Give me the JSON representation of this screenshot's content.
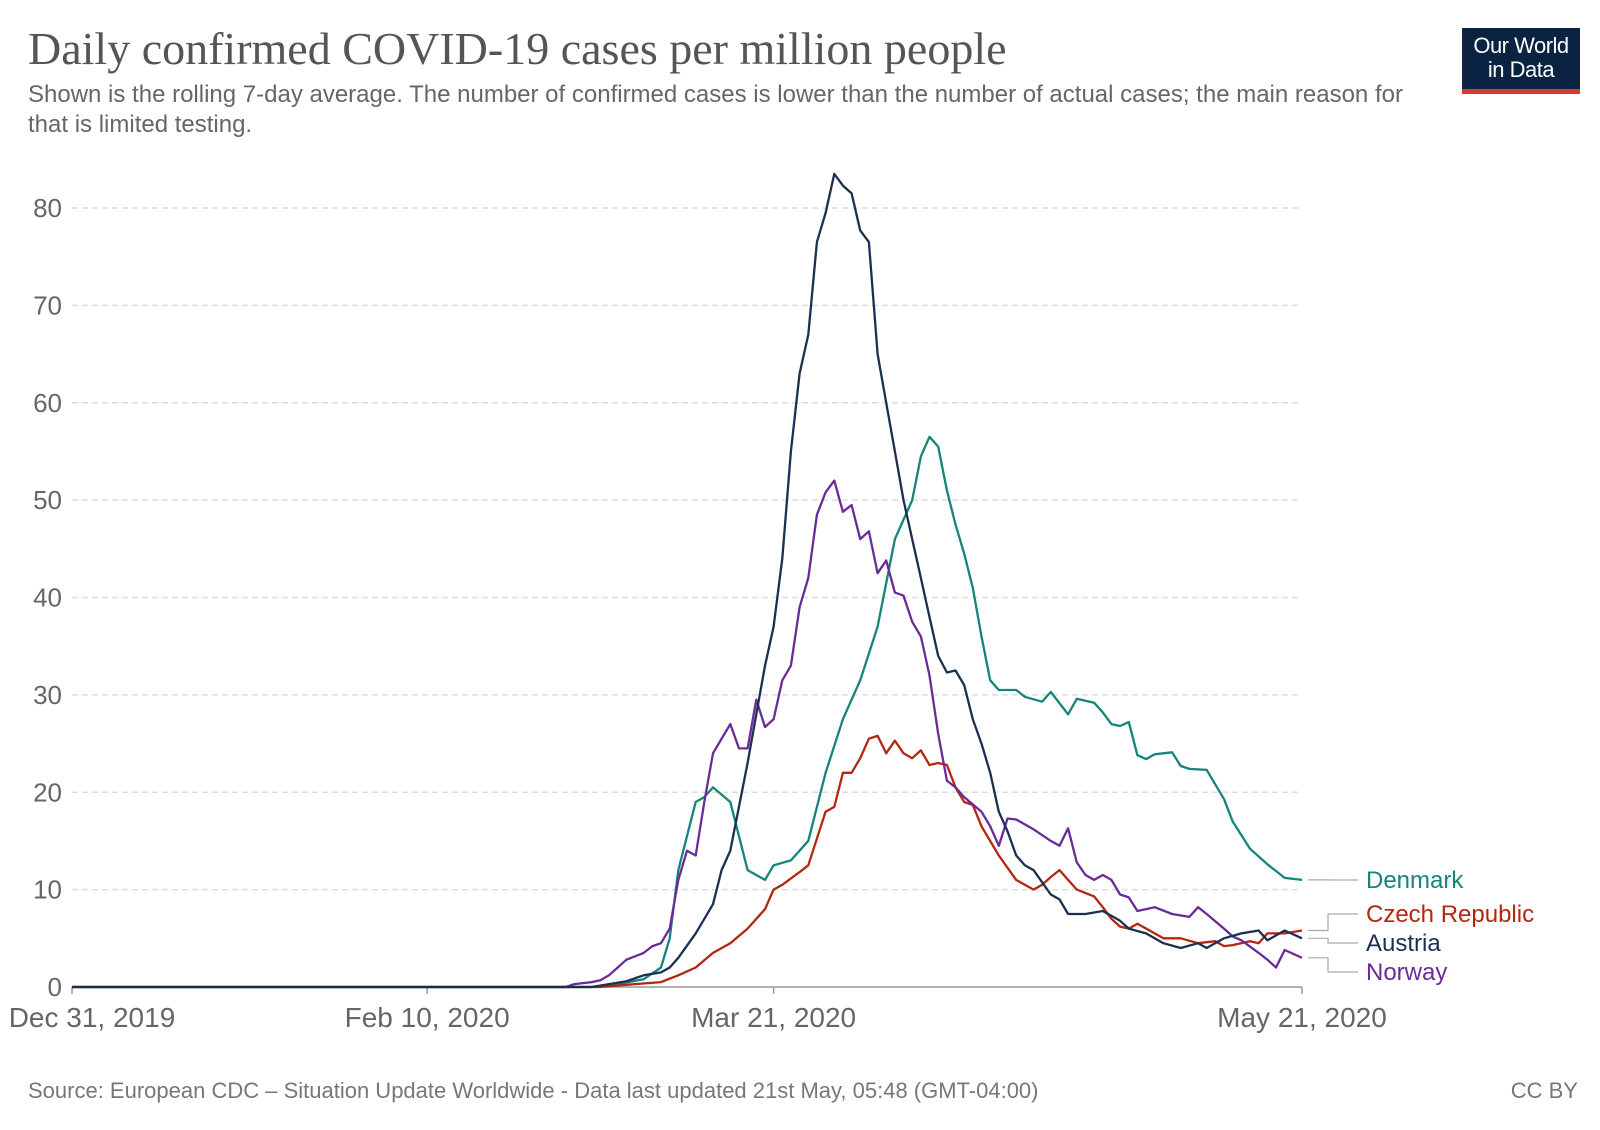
{
  "header": {
    "title": "Daily confirmed COVID-19 cases per million people",
    "subtitle": "Shown is the rolling 7-day average. The number of confirmed cases is lower than the number of actual cases; the main reason for that is limited testing.",
    "logo_line1": "Our World",
    "logo_line2": "in Data"
  },
  "footer": {
    "source": "Source: European CDC – Situation Update Worldwide - Data last updated 21st May, 05:48 (GMT-04:00)",
    "license": "CC BY"
  },
  "colors": {
    "denmark": "#15847a",
    "czech": "#b4270f",
    "austria": "#1b3051",
    "norway": "#6a2b98",
    "logo_bg": "#0a2342",
    "logo_bar": "#d73a31"
  },
  "chart_data": {
    "type": "line",
    "title": "Daily confirmed COVID-19 cases per million people",
    "xlabel": "",
    "ylabel": "",
    "x_start": "2019-12-31",
    "x_end": "2020-05-21",
    "x_ticks": [
      {
        "date": "2019-12-31",
        "label": "Dec 31, 2019"
      },
      {
        "date": "2020-02-10",
        "label": "Feb 10, 2020"
      },
      {
        "date": "2020-03-21",
        "label": "Mar 21, 2020"
      },
      {
        "date": "2020-05-21",
        "label": "May 21, 2020"
      }
    ],
    "ylim": [
      0,
      80
    ],
    "y_ticks": [
      0,
      10,
      20,
      30,
      40,
      50,
      60,
      70,
      80
    ],
    "grid": true,
    "legend": "right, labels at line ends",
    "series": [
      {
        "name": "Denmark",
        "color": "#15847a",
        "points": [
          [
            "2019-12-31",
            0
          ],
          [
            "2020-02-29",
            0
          ],
          [
            "2020-03-03",
            0.3
          ],
          [
            "2020-03-06",
            0.8
          ],
          [
            "2020-03-08",
            2
          ],
          [
            "2020-03-09",
            5
          ],
          [
            "2020-03-10",
            12
          ],
          [
            "2020-03-12",
            19
          ],
          [
            "2020-03-13",
            19.5
          ],
          [
            "2020-03-14",
            20.5
          ],
          [
            "2020-03-16",
            19
          ],
          [
            "2020-03-18",
            12
          ],
          [
            "2020-03-20",
            11
          ],
          [
            "2020-03-21",
            12.5
          ],
          [
            "2020-03-23",
            13
          ],
          [
            "2020-03-25",
            15
          ],
          [
            "2020-03-27",
            22
          ],
          [
            "2020-03-29",
            27.5
          ],
          [
            "2020-03-31",
            31.5
          ],
          [
            "2020-04-02",
            37
          ],
          [
            "2020-04-04",
            46
          ],
          [
            "2020-04-06",
            50
          ],
          [
            "2020-04-07",
            54.5
          ],
          [
            "2020-04-08",
            56.5
          ],
          [
            "2020-04-09",
            55.5
          ],
          [
            "2020-04-10",
            51
          ],
          [
            "2020-04-11",
            47.5
          ],
          [
            "2020-04-12",
            44.5
          ],
          [
            "2020-04-13",
            41
          ],
          [
            "2020-04-14",
            36
          ],
          [
            "2020-04-15",
            31.5
          ],
          [
            "2020-04-16",
            30.5
          ],
          [
            "2020-04-18",
            30.5
          ],
          [
            "2020-04-19",
            29.8
          ],
          [
            "2020-04-21",
            29.3
          ],
          [
            "2020-04-22",
            30.3
          ],
          [
            "2020-04-24",
            28
          ],
          [
            "2020-04-25",
            29.6
          ],
          [
            "2020-04-27",
            29.2
          ],
          [
            "2020-04-28",
            28.2
          ],
          [
            "2020-04-29",
            27
          ],
          [
            "2020-04-30",
            26.8
          ],
          [
            "2020-05-01",
            27.2
          ],
          [
            "2020-05-02",
            23.8
          ],
          [
            "2020-05-03",
            23.4
          ],
          [
            "2020-05-04",
            23.9
          ],
          [
            "2020-05-06",
            24.1
          ],
          [
            "2020-05-07",
            22.7
          ],
          [
            "2020-05-08",
            22.4
          ],
          [
            "2020-05-10",
            22.3
          ],
          [
            "2020-05-12",
            19.3
          ],
          [
            "2020-05-13",
            17
          ],
          [
            "2020-05-15",
            14.2
          ],
          [
            "2020-05-17",
            12.6
          ],
          [
            "2020-05-19",
            11.2
          ],
          [
            "2020-05-21",
            11
          ]
        ]
      },
      {
        "name": "Czech Republic",
        "color": "#b4270f",
        "points": [
          [
            "2019-12-31",
            0
          ],
          [
            "2020-03-01",
            0
          ],
          [
            "2020-03-05",
            0.3
          ],
          [
            "2020-03-08",
            0.5
          ],
          [
            "2020-03-10",
            1.2
          ],
          [
            "2020-03-12",
            2
          ],
          [
            "2020-03-14",
            3.5
          ],
          [
            "2020-03-16",
            4.5
          ],
          [
            "2020-03-18",
            6
          ],
          [
            "2020-03-20",
            8
          ],
          [
            "2020-03-21",
            10
          ],
          [
            "2020-03-22",
            10.5
          ],
          [
            "2020-03-24",
            11.8
          ],
          [
            "2020-03-25",
            12.5
          ],
          [
            "2020-03-27",
            18
          ],
          [
            "2020-03-28",
            18.5
          ],
          [
            "2020-03-29",
            22
          ],
          [
            "2020-03-30",
            22
          ],
          [
            "2020-03-31",
            23.5
          ],
          [
            "2020-04-01",
            25.5
          ],
          [
            "2020-04-02",
            25.8
          ],
          [
            "2020-04-03",
            24
          ],
          [
            "2020-04-04",
            25.3
          ],
          [
            "2020-04-05",
            24
          ],
          [
            "2020-04-06",
            23.5
          ],
          [
            "2020-04-07",
            24.3
          ],
          [
            "2020-04-08",
            22.8
          ],
          [
            "2020-04-09",
            23
          ],
          [
            "2020-04-10",
            22.8
          ],
          [
            "2020-04-11",
            20.5
          ],
          [
            "2020-04-12",
            19
          ],
          [
            "2020-04-13",
            18.7
          ],
          [
            "2020-04-14",
            16.5
          ],
          [
            "2020-04-16",
            13.5
          ],
          [
            "2020-04-18",
            11
          ],
          [
            "2020-04-20",
            10
          ],
          [
            "2020-04-21",
            10.5
          ],
          [
            "2020-04-22",
            11.3
          ],
          [
            "2020-04-23",
            12
          ],
          [
            "2020-04-24",
            11
          ],
          [
            "2020-04-25",
            10
          ],
          [
            "2020-04-27",
            9.3
          ],
          [
            "2020-04-28",
            8.2
          ],
          [
            "2020-04-29",
            7
          ],
          [
            "2020-04-30",
            6.2
          ],
          [
            "2020-05-01",
            6
          ],
          [
            "2020-05-02",
            6.5
          ],
          [
            "2020-05-04",
            5.5
          ],
          [
            "2020-05-05",
            5
          ],
          [
            "2020-05-07",
            5
          ],
          [
            "2020-05-09",
            4.5
          ],
          [
            "2020-05-11",
            4.7
          ],
          [
            "2020-05-12",
            4.2
          ],
          [
            "2020-05-13",
            4.3
          ],
          [
            "2020-05-15",
            4.7
          ],
          [
            "2020-05-16",
            4.5
          ],
          [
            "2020-05-17",
            5.5
          ],
          [
            "2020-05-19",
            5.5
          ],
          [
            "2020-05-21",
            5.8
          ]
        ]
      },
      {
        "name": "Austria",
        "color": "#1b3051",
        "points": [
          [
            "2019-12-31",
            0
          ],
          [
            "2020-02-29",
            0
          ],
          [
            "2020-03-02",
            0.3
          ],
          [
            "2020-03-04",
            0.6
          ],
          [
            "2020-03-06",
            1.2
          ],
          [
            "2020-03-08",
            1.5
          ],
          [
            "2020-03-09",
            2
          ],
          [
            "2020-03-10",
            3
          ],
          [
            "2020-03-12",
            5.5
          ],
          [
            "2020-03-14",
            8.5
          ],
          [
            "2020-03-15",
            12
          ],
          [
            "2020-03-16",
            14
          ],
          [
            "2020-03-18",
            23
          ],
          [
            "2020-03-19",
            28
          ],
          [
            "2020-03-20",
            33
          ],
          [
            "2020-03-21",
            37
          ],
          [
            "2020-03-22",
            44
          ],
          [
            "2020-03-23",
            55
          ],
          [
            "2020-03-24",
            63
          ],
          [
            "2020-03-25",
            67
          ],
          [
            "2020-03-26",
            76.5
          ],
          [
            "2020-03-27",
            79.5
          ],
          [
            "2020-03-28",
            83.5
          ],
          [
            "2020-03-29",
            82.3
          ],
          [
            "2020-03-30",
            81.5
          ],
          [
            "2020-03-31",
            77.7
          ],
          [
            "2020-04-01",
            76.5
          ],
          [
            "2020-04-02",
            65
          ],
          [
            "2020-04-03",
            60
          ],
          [
            "2020-04-04",
            55
          ],
          [
            "2020-04-05",
            50
          ],
          [
            "2020-04-06",
            46
          ],
          [
            "2020-04-07",
            42
          ],
          [
            "2020-04-08",
            38
          ],
          [
            "2020-04-09",
            34
          ],
          [
            "2020-04-10",
            32.3
          ],
          [
            "2020-04-11",
            32.5
          ],
          [
            "2020-04-12",
            31
          ],
          [
            "2020-04-13",
            27.5
          ],
          [
            "2020-04-14",
            25
          ],
          [
            "2020-04-15",
            22
          ],
          [
            "2020-04-16",
            18
          ],
          [
            "2020-04-17",
            16
          ],
          [
            "2020-04-18",
            13.5
          ],
          [
            "2020-04-19",
            12.5
          ],
          [
            "2020-04-20",
            12
          ],
          [
            "2020-04-22",
            9.5
          ],
          [
            "2020-04-23",
            9
          ],
          [
            "2020-04-24",
            7.5
          ],
          [
            "2020-04-26",
            7.5
          ],
          [
            "2020-04-28",
            7.8
          ],
          [
            "2020-04-30",
            6.8
          ],
          [
            "2020-05-01",
            6
          ],
          [
            "2020-05-03",
            5.5
          ],
          [
            "2020-05-05",
            4.5
          ],
          [
            "2020-05-07",
            4
          ],
          [
            "2020-05-09",
            4.5
          ],
          [
            "2020-05-10",
            4
          ],
          [
            "2020-05-12",
            5
          ],
          [
            "2020-05-14",
            5.5
          ],
          [
            "2020-05-16",
            5.8
          ],
          [
            "2020-05-17",
            4.8
          ],
          [
            "2020-05-19",
            5.8
          ],
          [
            "2020-05-21",
            5
          ]
        ]
      },
      {
        "name": "Norway",
        "color": "#6a2b98",
        "points": [
          [
            "2019-12-31",
            0
          ],
          [
            "2020-02-26",
            0
          ],
          [
            "2020-02-27",
            0.3
          ],
          [
            "2020-02-29",
            0.5
          ],
          [
            "2020-03-01",
            0.7
          ],
          [
            "2020-03-02",
            1.2
          ],
          [
            "2020-03-03",
            2
          ],
          [
            "2020-03-04",
            2.8
          ],
          [
            "2020-03-06",
            3.5
          ],
          [
            "2020-03-07",
            4.2
          ],
          [
            "2020-03-08",
            4.5
          ],
          [
            "2020-03-09",
            6
          ],
          [
            "2020-03-10",
            11
          ],
          [
            "2020-03-11",
            14
          ],
          [
            "2020-03-12",
            13.5
          ],
          [
            "2020-03-13",
            19
          ],
          [
            "2020-03-14",
            24
          ],
          [
            "2020-03-15",
            25.5
          ],
          [
            "2020-03-16",
            27
          ],
          [
            "2020-03-17",
            24.5
          ],
          [
            "2020-03-18",
            24.5
          ],
          [
            "2020-03-19",
            29.5
          ],
          [
            "2020-03-20",
            26.7
          ],
          [
            "2020-03-21",
            27.5
          ],
          [
            "2020-03-22",
            31.5
          ],
          [
            "2020-03-23",
            33
          ],
          [
            "2020-03-24",
            39
          ],
          [
            "2020-03-25",
            42
          ],
          [
            "2020-03-26",
            48.5
          ],
          [
            "2020-03-27",
            50.8
          ],
          [
            "2020-03-28",
            52
          ],
          [
            "2020-03-29",
            48.8
          ],
          [
            "2020-03-30",
            49.5
          ],
          [
            "2020-03-31",
            46
          ],
          [
            "2020-04-01",
            46.8
          ],
          [
            "2020-04-02",
            42.5
          ],
          [
            "2020-04-03",
            43.8
          ],
          [
            "2020-04-04",
            40.5
          ],
          [
            "2020-04-05",
            40.2
          ],
          [
            "2020-04-06",
            37.5
          ],
          [
            "2020-04-07",
            36
          ],
          [
            "2020-04-08",
            32
          ],
          [
            "2020-04-09",
            26
          ],
          [
            "2020-04-10",
            21.2
          ],
          [
            "2020-04-11",
            20.5
          ],
          [
            "2020-04-12",
            19.5
          ],
          [
            "2020-04-14",
            18
          ],
          [
            "2020-04-15",
            16.5
          ],
          [
            "2020-04-16",
            14.5
          ],
          [
            "2020-04-17",
            17.3
          ],
          [
            "2020-04-18",
            17.2
          ],
          [
            "2020-04-20",
            16.2
          ],
          [
            "2020-04-22",
            15
          ],
          [
            "2020-04-23",
            14.5
          ],
          [
            "2020-04-24",
            16.3
          ],
          [
            "2020-04-25",
            12.8
          ],
          [
            "2020-04-26",
            11.5
          ],
          [
            "2020-04-27",
            11
          ],
          [
            "2020-04-28",
            11.5
          ],
          [
            "2020-04-29",
            11
          ],
          [
            "2020-04-30",
            9.5
          ],
          [
            "2020-05-01",
            9.2
          ],
          [
            "2020-05-02",
            7.8
          ],
          [
            "2020-05-03",
            8
          ],
          [
            "2020-05-04",
            8.2
          ],
          [
            "2020-05-06",
            7.5
          ],
          [
            "2020-05-08",
            7.2
          ],
          [
            "2020-05-09",
            8.2
          ],
          [
            "2020-05-10",
            7.5
          ],
          [
            "2020-05-12",
            6
          ],
          [
            "2020-05-13",
            5.2
          ],
          [
            "2020-05-14",
            4.8
          ],
          [
            "2020-05-16",
            3.5
          ],
          [
            "2020-05-17",
            2.8
          ],
          [
            "2020-05-18",
            2
          ],
          [
            "2020-05-19",
            3.8
          ],
          [
            "2020-05-21",
            3
          ]
        ]
      }
    ],
    "labels": [
      {
        "series": "Denmark",
        "text": "Denmark"
      },
      {
        "series": "Czech Republic",
        "text": "Czech Republic"
      },
      {
        "series": "Austria",
        "text": "Austria"
      },
      {
        "series": "Norway",
        "text": "Norway"
      }
    ]
  }
}
